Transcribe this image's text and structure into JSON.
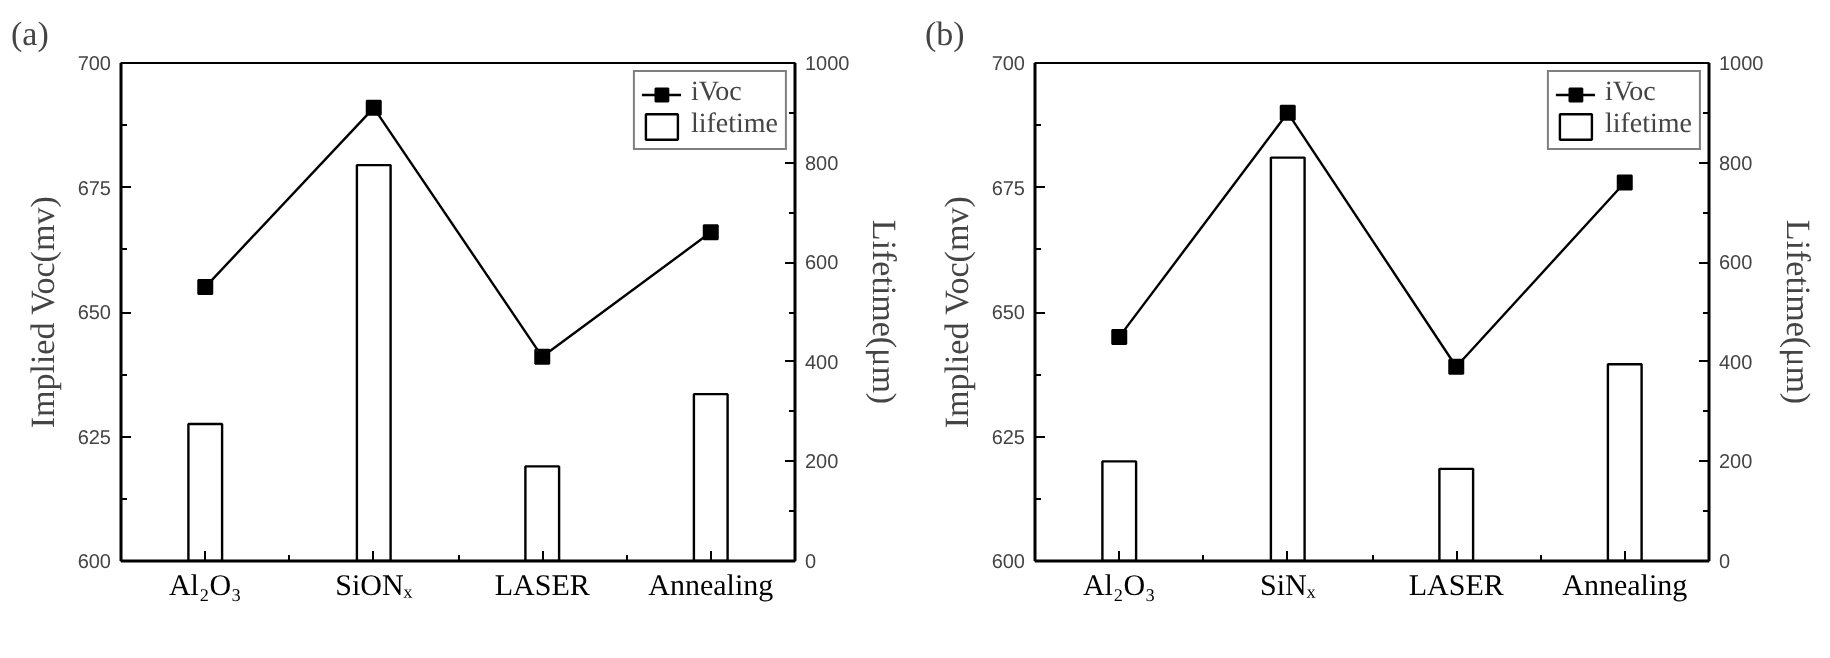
{
  "chart_data": [
    {
      "type": "bar",
      "title": "(a)",
      "categories": [
        "Al₂O₃",
        "SiONₓ",
        "LASER",
        "Annealing"
      ],
      "ylabel": "Implied Voc(mv)",
      "y2label": "Lifetime(μm)",
      "ylim": [
        600,
        700
      ],
      "yticks": [
        600,
        625,
        650,
        675,
        700
      ],
      "y2lim": [
        0,
        1000
      ],
      "y2ticks": [
        0,
        200,
        400,
        600,
        800,
        1000
      ],
      "legend": "top right",
      "grid": false,
      "series": [
        {
          "name": "iVoc",
          "type": "line",
          "color": "#000000",
          "marker": "square",
          "values": [
            655,
            691,
            641,
            666
          ]
        },
        {
          "name": "lifetime",
          "color": "#ffffff",
          "axis": "y2",
          "values": [
            275,
            795,
            190,
            335
          ]
        }
      ]
    },
    {
      "type": "bar",
      "title": "(b)",
      "categories": [
        "Al₂O₃",
        "SiNₓ",
        "LASER",
        "Annealing"
      ],
      "ylabel": "Implied Voc(mv)",
      "y2label": "Lifetime(μm)",
      "ylim": [
        600,
        700
      ],
      "yticks": [
        600,
        625,
        650,
        675,
        700
      ],
      "y2lim": [
        0,
        1000
      ],
      "y2ticks": [
        0,
        200,
        400,
        600,
        800,
        1000
      ],
      "legend": "top right",
      "grid": false,
      "series": [
        {
          "name": "iVoc",
          "type": "line",
          "color": "#000000",
          "marker": "square",
          "values": [
            645,
            690,
            639,
            676
          ]
        },
        {
          "name": "lifetime",
          "color": "#ffffff",
          "axis": "y2",
          "values": [
            200,
            810,
            185,
            395
          ]
        }
      ]
    }
  ]
}
